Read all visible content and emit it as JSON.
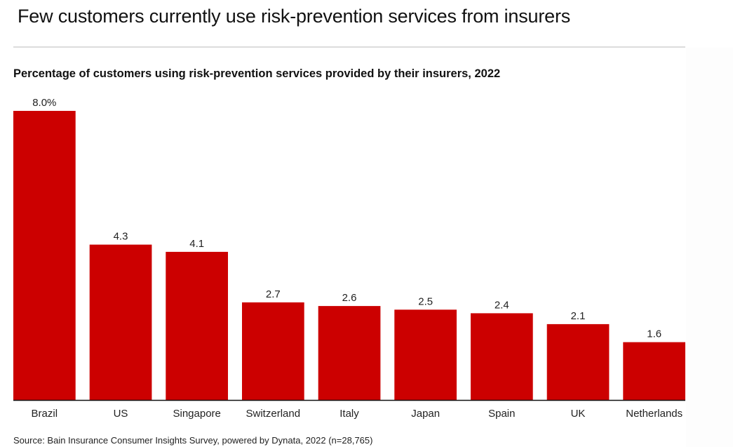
{
  "header": {
    "title": "Few customers currently use risk-prevention services from insurers"
  },
  "chart_data": {
    "type": "bar",
    "title": "Percentage of customers using risk-prevention services provided by their insurers, 2022",
    "xlabel": "",
    "ylabel": "",
    "unit": "%",
    "categories": [
      "Brazil",
      "US",
      "Singapore",
      "Switzerland",
      "Italy",
      "Japan",
      "Spain",
      "UK",
      "Netherlands"
    ],
    "values": [
      8.0,
      4.3,
      4.1,
      2.7,
      2.6,
      2.5,
      2.4,
      2.1,
      1.6
    ],
    "data_labels": [
      "8.0%",
      "4.3",
      "4.1",
      "2.7",
      "2.6",
      "2.5",
      "2.4",
      "2.1",
      "1.6"
    ],
    "ylim": [
      0,
      8.0
    ],
    "grid": false,
    "legend": "none",
    "bar_color": "#cc0000",
    "axis_color": "#111111"
  },
  "footer": {
    "source": "Source: Bain Insurance Consumer Insights Survey, powered by Dynata, 2022 (n=28,765)"
  }
}
